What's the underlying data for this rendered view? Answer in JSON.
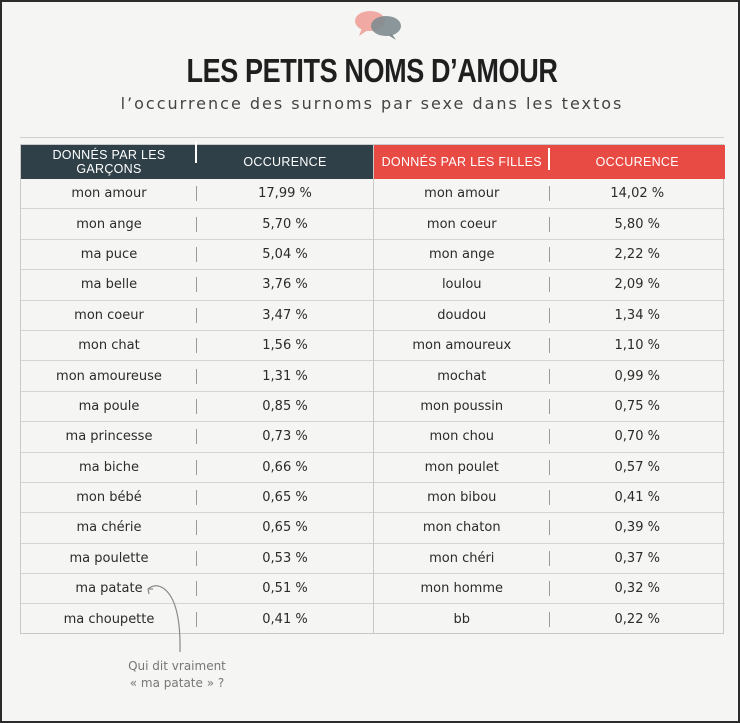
{
  "header": {
    "title": "LES PETITS NOMS D’AMOUR",
    "subtitle": "l’occurrence des surnoms par sexe dans les textos"
  },
  "colors": {
    "boys_header": "#2f4048",
    "girls_header": "#e84a44",
    "bubble_pink": "#f1a9a4",
    "bubble_grey": "#7f8c90"
  },
  "chart_data": {
    "type": "table",
    "tables": [
      {
        "headers": [
          "DONNÉS PAR LES GARÇONS",
          "OCCURENCE"
        ],
        "rows": [
          [
            "mon amour",
            "17,99 %"
          ],
          [
            "mon ange",
            "5,70 %"
          ],
          [
            "ma puce",
            "5,04 %"
          ],
          [
            "ma belle",
            "3,76 %"
          ],
          [
            "mon coeur",
            "3,47 %"
          ],
          [
            "mon chat",
            "1,56 %"
          ],
          [
            "mon amoureuse",
            "1,31 %"
          ],
          [
            "ma poule",
            "0,85 %"
          ],
          [
            "ma princesse",
            "0,73 %"
          ],
          [
            "ma biche",
            "0,66 %"
          ],
          [
            "mon bébé",
            "0,65 %"
          ],
          [
            "ma chérie",
            "0,65 %"
          ],
          [
            "ma poulette",
            "0,53 %"
          ],
          [
            "ma patate",
            "0,51 %"
          ],
          [
            "ma choupette",
            "0,41 %"
          ]
        ]
      },
      {
        "headers": [
          "DONNÉS PAR LES FILLES",
          "OCCURENCE"
        ],
        "rows": [
          [
            "mon amour",
            "14,02 %"
          ],
          [
            "mon coeur",
            "5,80 %"
          ],
          [
            "mon ange",
            "2,22 %"
          ],
          [
            "loulou",
            "2,09 %"
          ],
          [
            "doudou",
            "1,34 %"
          ],
          [
            "mon amoureux",
            "1,10 %"
          ],
          [
            "mochat",
            "0,99 %"
          ],
          [
            "mon poussin",
            "0,75 %"
          ],
          [
            "mon chou",
            "0,70 %"
          ],
          [
            "mon poulet",
            "0,57 %"
          ],
          [
            "mon bibou",
            "0,41 %"
          ],
          [
            "mon chaton",
            "0,39 %"
          ],
          [
            "mon chéri",
            "0,37 %"
          ],
          [
            "mon homme",
            "0,32 %"
          ],
          [
            "bb",
            "0,22 %"
          ]
        ]
      }
    ]
  },
  "note": {
    "line1": "Qui dit vraiment",
    "line2": "« ma patate » ?"
  }
}
